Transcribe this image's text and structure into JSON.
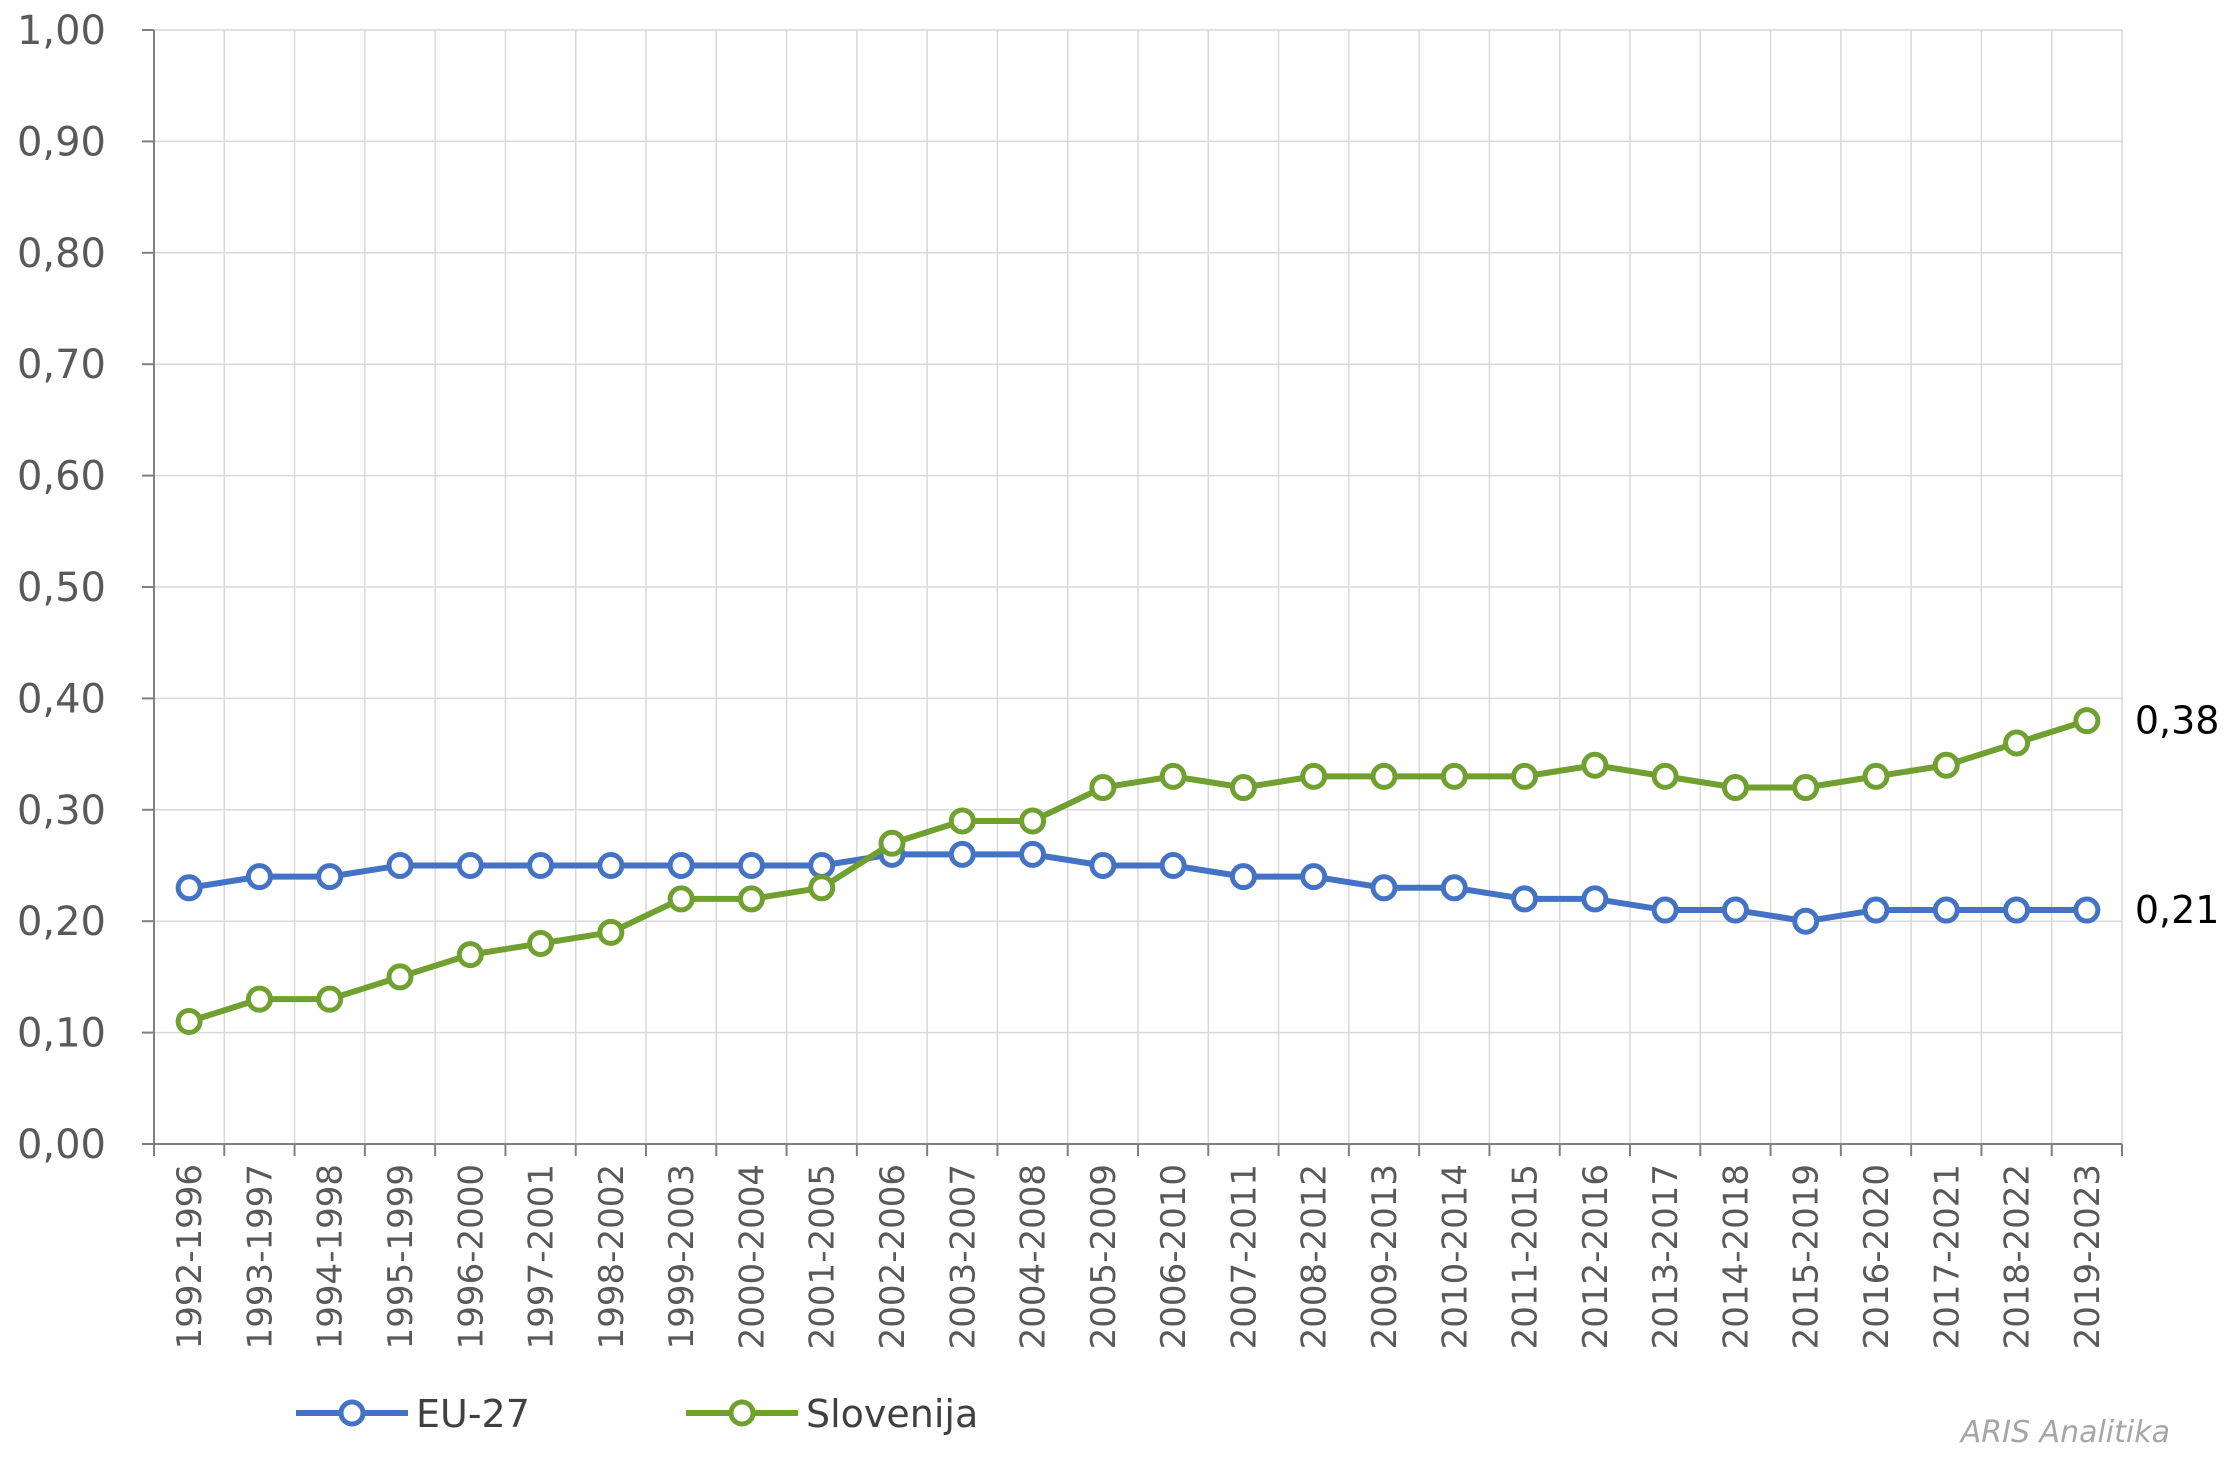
{
  "chart_data": {
    "type": "line",
    "categories": [
      "1992-1996",
      "1993-1997",
      "1994-1998",
      "1995-1999",
      "1996-2000",
      "1997-2001",
      "1998-2002",
      "1999-2003",
      "2000-2004",
      "2001-2005",
      "2002-2006",
      "2003-2007",
      "2004-2008",
      "2005-2009",
      "2006-2010",
      "2007-2011",
      "2008-2012",
      "2009-2013",
      "2010-2014",
      "2011-2015",
      "2012-2016",
      "2013-2017",
      "2014-2018",
      "2015-2019",
      "2016-2020",
      "2017-2021",
      "2018-2022",
      "2019-2023"
    ],
    "series": [
      {
        "name": "EU-27",
        "color": "#4472C4",
        "values": [
          0.23,
          0.24,
          0.24,
          0.25,
          0.25,
          0.25,
          0.25,
          0.25,
          0.25,
          0.25,
          0.26,
          0.26,
          0.26,
          0.25,
          0.25,
          0.24,
          0.24,
          0.23,
          0.23,
          0.22,
          0.22,
          0.21,
          0.21,
          0.2,
          0.21,
          0.21,
          0.21,
          0.21
        ],
        "end_label": "0,21"
      },
      {
        "name": "Slovenija",
        "color": "#70A030",
        "values": [
          0.11,
          0.13,
          0.13,
          0.15,
          0.17,
          0.18,
          0.19,
          0.22,
          0.22,
          0.23,
          0.27,
          0.29,
          0.29,
          0.32,
          0.33,
          0.32,
          0.33,
          0.33,
          0.33,
          0.33,
          0.34,
          0.33,
          0.32,
          0.32,
          0.33,
          0.34,
          0.36,
          0.38
        ],
        "end_label": "0,38"
      }
    ],
    "ylim": [
      0,
      1
    ],
    "ytick_labels": [
      "0,00",
      "0,10",
      "0,20",
      "0,30",
      "0,40",
      "0,50",
      "0,60",
      "0,70",
      "0,80",
      "0,90",
      "1,00"
    ],
    "grid": true,
    "legend_position": "bottom-left",
    "watermark": "ARIS Analitika"
  }
}
